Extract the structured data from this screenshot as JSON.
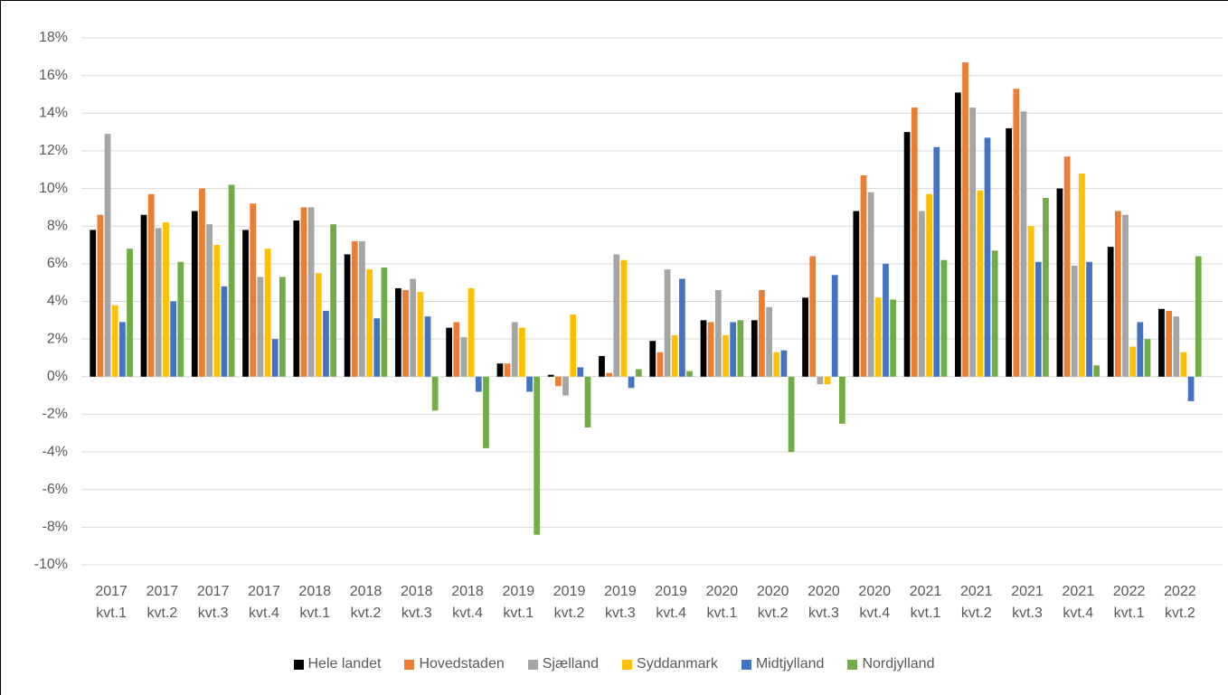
{
  "chart_data": {
    "type": "bar",
    "categories": [
      "2017 kvt.1",
      "2017 kvt.2",
      "2017 kvt.3",
      "2017 kvt.4",
      "2018 kvt.1",
      "2018 kvt.2",
      "2018 kvt.3",
      "2018 kvt.4",
      "2019 kvt.1",
      "2019 kvt.2",
      "2019 kvt.3",
      "2019 kvt.4",
      "2020 kvt.1",
      "2020 kvt.2",
      "2020 kvt.3",
      "2020 kvt.4",
      "2021 kvt.1",
      "2021 kvt.2",
      "2021 kvt.3",
      "2021 kvt.4",
      "2022 kvt.1",
      "2022 kvt.2"
    ],
    "series": [
      {
        "name": "Hele landet",
        "color": "#000000",
        "values": [
          7.8,
          8.6,
          8.8,
          7.8,
          8.3,
          6.5,
          4.7,
          2.6,
          0.7,
          0.1,
          1.1,
          1.9,
          3.0,
          3.0,
          4.2,
          8.8,
          13.0,
          15.1,
          13.2,
          10.0,
          6.9,
          3.6
        ]
      },
      {
        "name": "Hovedstaden",
        "color": "#ed7d31",
        "values": [
          8.6,
          9.7,
          10.0,
          9.2,
          9.0,
          7.2,
          4.6,
          2.9,
          0.7,
          -0.5,
          0.2,
          1.3,
          2.9,
          4.6,
          6.4,
          10.7,
          14.3,
          16.7,
          15.3,
          11.7,
          8.8,
          3.5
        ]
      },
      {
        "name": "Sjælland",
        "color": "#a5a5a5",
        "values": [
          12.9,
          7.9,
          8.1,
          5.3,
          9.0,
          7.2,
          5.2,
          2.1,
          2.9,
          -1.0,
          6.5,
          5.7,
          4.6,
          3.7,
          -0.4,
          9.8,
          8.8,
          14.3,
          14.1,
          5.9,
          8.6,
          3.2
        ]
      },
      {
        "name": "Syddanmark",
        "color": "#ffc000",
        "values": [
          3.8,
          8.2,
          7.0,
          6.8,
          5.5,
          5.7,
          4.5,
          4.7,
          2.6,
          3.3,
          6.2,
          2.2,
          2.2,
          1.3,
          -0.4,
          4.2,
          9.7,
          9.9,
          8.0,
          10.8,
          1.6,
          1.3
        ]
      },
      {
        "name": "Midtjylland",
        "color": "#4472c4",
        "values": [
          2.9,
          4.0,
          4.8,
          2.0,
          3.5,
          3.1,
          3.2,
          -0.8,
          -0.8,
          0.5,
          -0.6,
          5.2,
          2.9,
          1.4,
          5.4,
          6.0,
          12.2,
          12.7,
          6.1,
          6.1,
          2.9,
          -1.3
        ]
      },
      {
        "name": "Nordjylland",
        "color": "#70ad47",
        "values": [
          6.8,
          6.1,
          10.2,
          5.3,
          8.1,
          5.8,
          -1.8,
          -3.8,
          -8.4,
          -2.7,
          0.4,
          0.3,
          3.0,
          -4.0,
          -2.5,
          4.1,
          6.2,
          6.7,
          9.5,
          0.6,
          2.0,
          6.4
        ]
      }
    ],
    "ylim": [
      -10,
      18
    ],
    "yticks": [
      {
        "value": -10,
        "label": "-10%"
      },
      {
        "value": -8,
        "label": "-8%"
      },
      {
        "value": -6,
        "label": "-6%"
      },
      {
        "value": -4,
        "label": "-4%"
      },
      {
        "value": -2,
        "label": "-2%"
      },
      {
        "value": 0,
        "label": "0%"
      },
      {
        "value": 2,
        "label": "2%"
      },
      {
        "value": 4,
        "label": "4%"
      },
      {
        "value": 6,
        "label": "6%"
      },
      {
        "value": 8,
        "label": "8%"
      },
      {
        "value": 10,
        "label": "10%"
      },
      {
        "value": 12,
        "label": "12%"
      },
      {
        "value": 14,
        "label": "14%"
      },
      {
        "value": 16,
        "label": "16%"
      },
      {
        "value": 18,
        "label": "18%"
      }
    ],
    "grid": true,
    "legend": "bottom"
  }
}
